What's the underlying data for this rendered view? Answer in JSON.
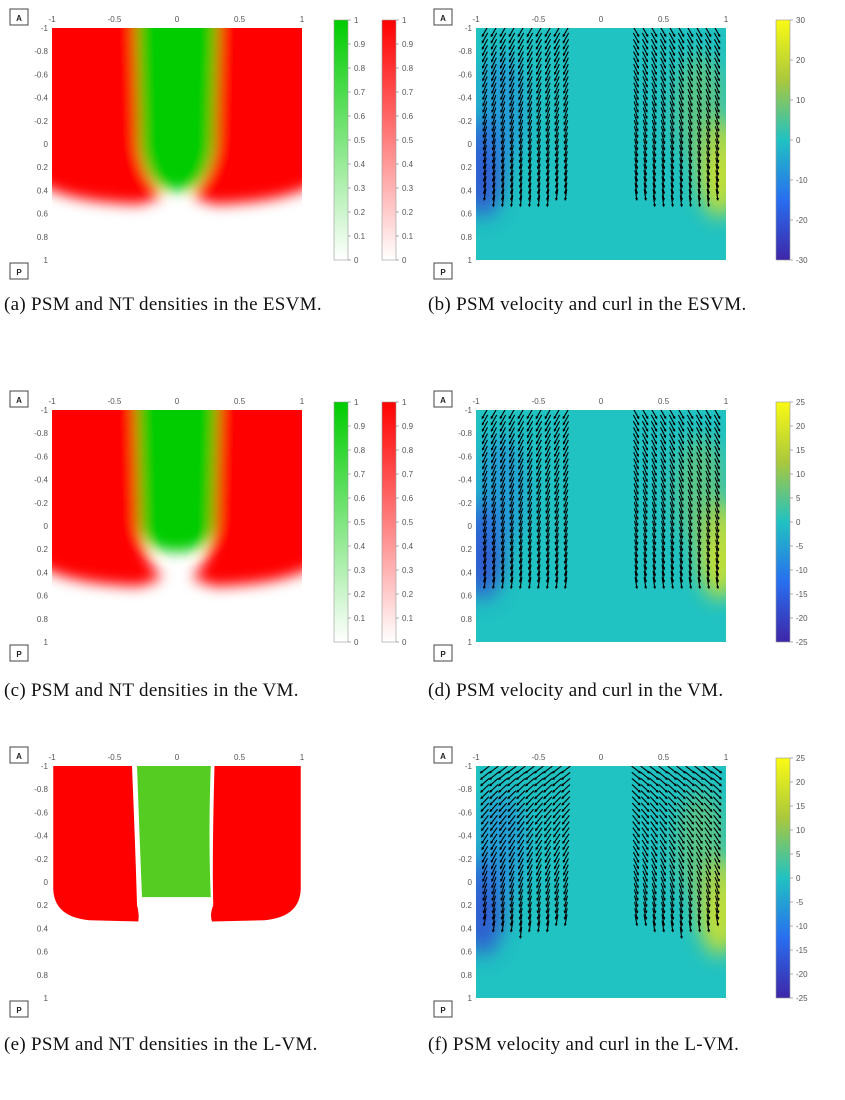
{
  "orientation": {
    "anterior": "A",
    "posterior": "P"
  },
  "axes": {
    "x_ticks": [
      "-1",
      "-0.5",
      "0",
      "0.5",
      "1"
    ],
    "y_ticks": [
      "-1",
      "-0.8",
      "-0.6",
      "-0.4",
      "-0.2",
      "0",
      "0.2",
      "0.4",
      "0.6",
      "0.8",
      "1"
    ]
  },
  "colors": {
    "psm": "#ff0000",
    "nt": "#00cc00",
    "nt_sharp": "#55cc22",
    "field": "#20c2c2",
    "arrow": "#000000"
  },
  "panels": [
    {
      "id": "a",
      "kind": "density",
      "caption": "(a) PSM and NT densities in the ESVM.",
      "colorbar_ticks": [
        "1",
        "0.9",
        "0.8",
        "0.7",
        "0.6",
        "0.5",
        "0.4",
        "0.3",
        "0.2",
        "0.1",
        "0"
      ]
    },
    {
      "id": "b",
      "kind": "curl",
      "caption": "(b) PSM velocity and curl in the ESVM.",
      "colorbar_ticks": [
        "30",
        "20",
        "10",
        "0",
        "-10",
        "-20",
        "-30"
      ]
    },
    {
      "id": "c",
      "kind": "density",
      "caption": "(c) PSM and NT densities in the VM.",
      "colorbar_ticks": [
        "1",
        "0.9",
        "0.8",
        "0.7",
        "0.6",
        "0.5",
        "0.4",
        "0.3",
        "0.2",
        "0.1",
        "0"
      ]
    },
    {
      "id": "d",
      "kind": "curl",
      "caption": "(d) PSM velocity and curl in the VM.",
      "colorbar_ticks": [
        "25",
        "20",
        "15",
        "10",
        "5",
        "0",
        "-5",
        "-10",
        "-15",
        "-20",
        "-25"
      ]
    },
    {
      "id": "e",
      "kind": "density_sharp",
      "caption": "(e) PSM and NT densities in the L-VM.",
      "colorbar_ticks": []
    },
    {
      "id": "f",
      "kind": "curl",
      "caption": "(f) PSM velocity and curl in the L-VM.",
      "colorbar_ticks": [
        "25",
        "20",
        "15",
        "10",
        "5",
        "0",
        "-5",
        "-10",
        "-15",
        "-20",
        "-25"
      ]
    }
  ]
}
